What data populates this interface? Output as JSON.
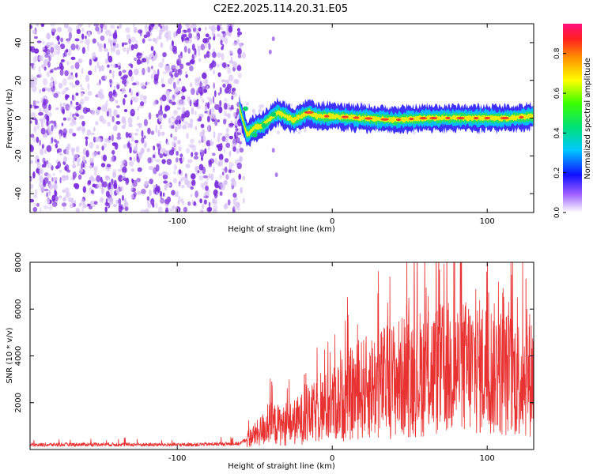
{
  "title": "C2E2.2025.114.20.31.E05",
  "colors": {
    "frame": "#000000",
    "snr_line": "#e83232",
    "noise": "#7a2bdc",
    "noise_light": "#d9c4f5"
  },
  "chart_data": [
    {
      "type": "heatmap",
      "name": "spectrogram",
      "xlabel": "Height of straight line (km)",
      "ylabel": "Frequency (Hz)",
      "xlim": [
        -195,
        130
      ],
      "ylim": [
        -50,
        50
      ],
      "x_ticks": [
        -100,
        0,
        100
      ],
      "y_ticks": [
        -40,
        -20,
        0,
        20,
        40
      ],
      "noise_region_x": [
        -195,
        -57
      ],
      "ridge": [
        [
          -60,
          6
        ],
        [
          -55,
          -9
        ],
        [
          -50,
          -5
        ],
        [
          -45,
          -4
        ],
        [
          -40,
          0
        ],
        [
          -35,
          3
        ],
        [
          -30,
          1
        ],
        [
          -25,
          -1
        ],
        [
          -20,
          1
        ],
        [
          -15,
          3
        ],
        [
          -10,
          1
        ],
        [
          0,
          1
        ],
        [
          20,
          0
        ],
        [
          40,
          -1
        ],
        [
          60,
          0
        ],
        [
          80,
          0
        ],
        [
          100,
          0
        ],
        [
          115,
          0
        ],
        [
          130,
          1
        ]
      ],
      "colorbar": {
        "label": "Normalized spectral amplitude",
        "range": [
          0,
          0.95
        ],
        "ticks": [
          0.0,
          0.2,
          0.4,
          0.6,
          0.8
        ]
      }
    },
    {
      "type": "line",
      "name": "snr",
      "xlabel": "Height of straight line (km)",
      "ylabel": "SNR (10 * v/v)",
      "xlim": [
        -195,
        130
      ],
      "ylim": [
        0,
        8000
      ],
      "x_ticks": [
        -100,
        0,
        100
      ],
      "y_ticks": [
        2000,
        4000,
        6000,
        8000
      ],
      "envelope": [
        [
          -195,
          200
        ],
        [
          -150,
          220
        ],
        [
          -100,
          200
        ],
        [
          -60,
          250
        ],
        [
          -48,
          700
        ],
        [
          -40,
          1100
        ],
        [
          -30,
          1000
        ],
        [
          -20,
          1300
        ],
        [
          -10,
          1600
        ],
        [
          0,
          1900
        ],
        [
          10,
          2300
        ],
        [
          20,
          2600
        ],
        [
          30,
          2800
        ],
        [
          40,
          3000
        ],
        [
          50,
          3200
        ],
        [
          60,
          3300
        ],
        [
          70,
          3400
        ],
        [
          80,
          3500
        ],
        [
          90,
          3500
        ],
        [
          100,
          3500
        ],
        [
          110,
          3300
        ],
        [
          120,
          3100
        ],
        [
          130,
          3300
        ]
      ],
      "peaks": [
        [
          -39,
          2900
        ],
        [
          -18,
          3200
        ],
        [
          48,
          6200
        ],
        [
          62,
          5900
        ],
        [
          79,
          8000
        ],
        [
          88,
          6000
        ],
        [
          110,
          6700
        ],
        [
          125,
          7300
        ]
      ]
    }
  ]
}
